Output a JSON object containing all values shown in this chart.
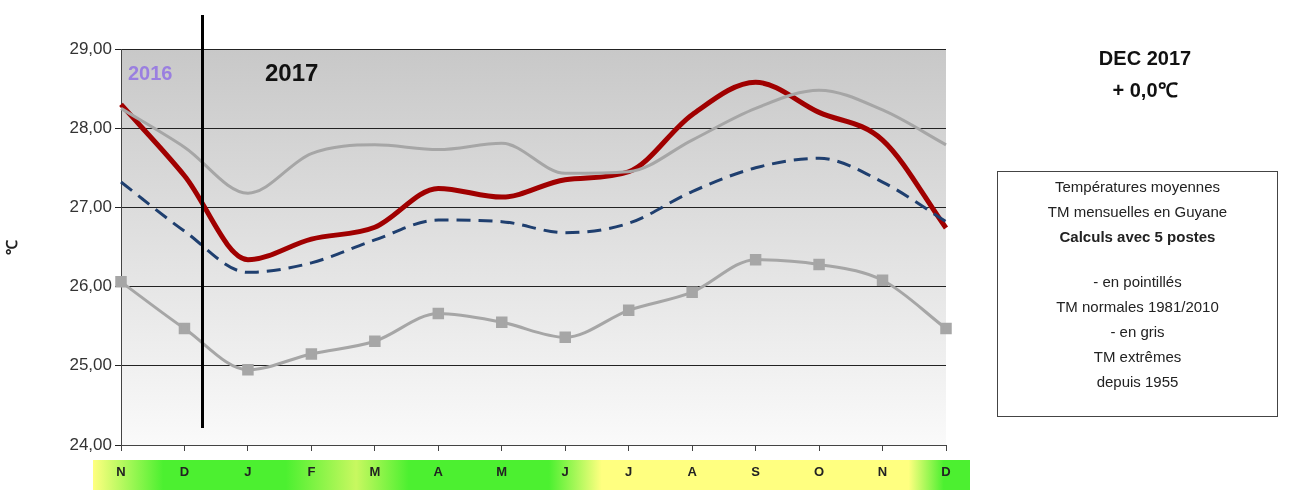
{
  "chart_data": {
    "type": "line",
    "title": "DEC 2017",
    "subtitle": "+ 0,0℃",
    "ylabel": "℃",
    "categories": [
      "N",
      "D",
      "J",
      "F",
      "M",
      "A",
      "M",
      "J",
      "J",
      "A",
      "S",
      "O",
      "N",
      "D"
    ],
    "series": [
      {
        "color": "#a6a6a6",
        "line_style": "solid",
        "marker": "none",
        "values": [
          28.25,
          27.76,
          27.18,
          27.68,
          27.79,
          27.73,
          27.81,
          27.43,
          27.45,
          27.85,
          28.25,
          28.48,
          28.23,
          27.79
        ]
      },
      {
        "color": "#a6a6a6",
        "line_style": "solid",
        "marker": "square",
        "values": [
          26.06,
          25.47,
          24.95,
          25.15,
          25.31,
          25.66,
          25.55,
          25.36,
          25.7,
          25.93,
          26.34,
          26.28,
          26.08,
          25.47
        ]
      },
      {
        "color": "#1f3f6f",
        "line_style": "dashed",
        "marker": "none",
        "values": [
          27.32,
          26.7,
          26.18,
          26.3,
          26.59,
          26.84,
          26.82,
          26.68,
          26.8,
          27.2,
          27.5,
          27.62,
          27.32,
          26.82
        ]
      },
      {
        "color": "#a00000",
        "line_style": "solid",
        "marker": "none",
        "values": [
          28.3,
          27.4,
          26.34,
          26.6,
          26.75,
          27.24,
          27.13,
          27.35,
          27.45,
          28.17,
          28.58,
          28.2,
          27.85,
          26.74
        ]
      }
    ],
    "ylim": [
      24,
      29
    ],
    "yticks": [
      {
        "value": 24,
        "label": "24,00"
      },
      {
        "value": 25,
        "label": "25,00"
      },
      {
        "value": 26,
        "label": "26,00"
      },
      {
        "value": 27,
        "label": "27,00"
      },
      {
        "value": 28,
        "label": "28,00"
      },
      {
        "value": 29,
        "label": "29,00"
      }
    ],
    "grid": "y",
    "legend": false,
    "annotations": [
      "2016",
      "2017",
      "Températures moyennes",
      "TM mensuelles en Guyane",
      "Calculs avec 5 postes",
      "- en pointillés",
      "TM normales 1981/2010",
      "- en gris",
      "TM extrêmes",
      "depuis 1955"
    ]
  }
}
